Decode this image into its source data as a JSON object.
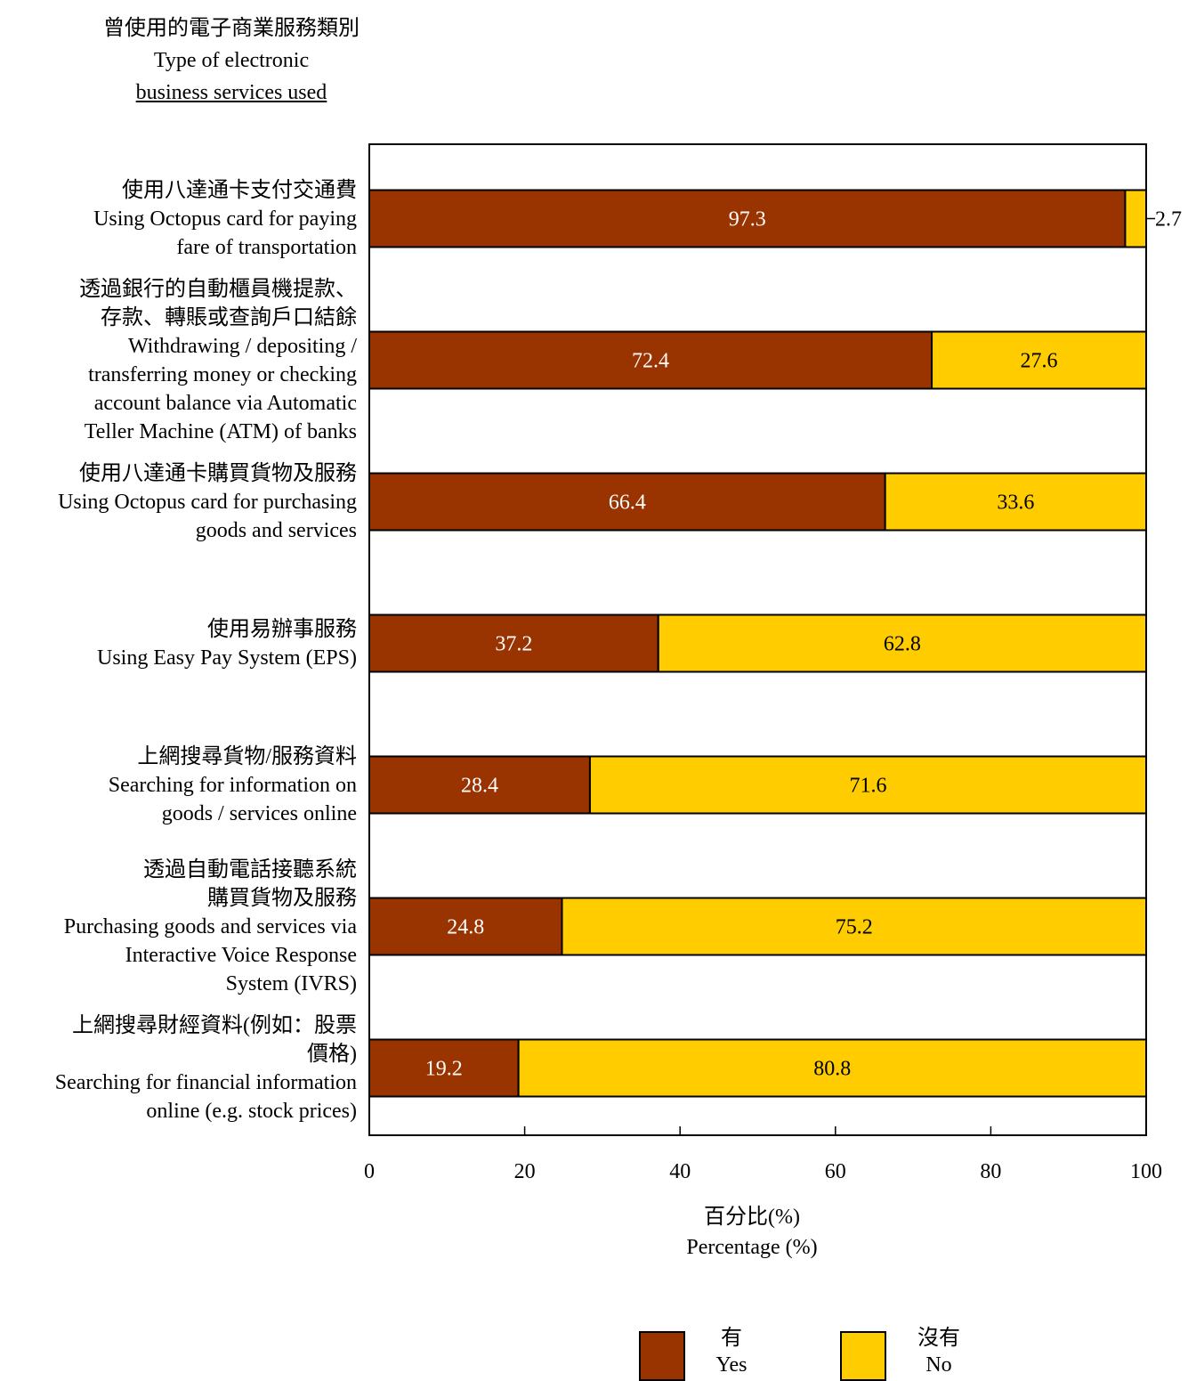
{
  "y_axis_title": {
    "zh": "曾使用的電子商業服務類別",
    "en_line1": "Type of electronic",
    "en_line2": "business services used"
  },
  "x_axis_title": {
    "zh": "百分比(%)",
    "en": "Percentage (%)"
  },
  "legend": {
    "yes": {
      "zh": "有",
      "en": "Yes"
    },
    "no": {
      "zh": "沒有",
      "en": "No"
    }
  },
  "colors": {
    "yes": "#993300",
    "no": "#ffcc00"
  },
  "chart_data": {
    "type": "bar",
    "orientation": "horizontal",
    "stacked": true,
    "xlim": [
      0,
      100
    ],
    "xticks": [
      0,
      20,
      40,
      60,
      80,
      100
    ],
    "categories": [
      [
        "使用八達通卡支付交通費",
        "Using Octopus card for paying",
        "fare of transportation"
      ],
      [
        "透過銀行的自動櫃員機提款、",
        "存款、轉賬或查詢戶口結餘",
        "Withdrawing / depositing /",
        "transferring money or checking",
        "account balance via Automatic",
        "Teller Machine (ATM) of banks"
      ],
      [
        "使用八達通卡購買貨物及服務",
        "Using Octopus card for purchasing",
        "goods and services"
      ],
      [
        "使用易辦事服務",
        "Using Easy Pay System (EPS)"
      ],
      [
        "上網搜尋貨物/服務資料",
        "Searching for information on",
        "goods / services online"
      ],
      [
        "透過自動電話接聽系統",
        "購買貨物及服務",
        "Purchasing goods and services via",
        "Interactive Voice Response",
        "System (IVRS)"
      ],
      [
        "上網搜尋財經資料(例如：股票",
        "價格)",
        "Searching for financial information",
        "online (e.g. stock prices)"
      ]
    ],
    "series": [
      {
        "name": "有 Yes",
        "values": [
          97.3,
          72.4,
          66.4,
          37.2,
          28.4,
          24.8,
          19.2
        ]
      },
      {
        "name": "沒有 No",
        "values": [
          2.7,
          27.6,
          33.6,
          62.8,
          71.6,
          75.2,
          80.8
        ]
      }
    ]
  }
}
